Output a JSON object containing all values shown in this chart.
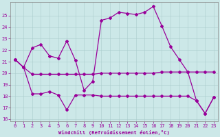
{
  "xlabel": "Windchill (Refroidissement éolien,°C)",
  "xlim": [
    -0.5,
    23.5
  ],
  "ylim": [
    15.8,
    26.2
  ],
  "yticks": [
    16,
    17,
    18,
    19,
    20,
    21,
    22,
    23,
    24,
    25
  ],
  "xticks": [
    0,
    1,
    2,
    3,
    4,
    5,
    6,
    7,
    8,
    9,
    10,
    11,
    12,
    13,
    14,
    15,
    16,
    17,
    18,
    19,
    20,
    21,
    22,
    23
  ],
  "bg_color": "#cce8e8",
  "line_color1": "#990099",
  "line_color2": "#cc00cc",
  "line_color3": "#aa00aa",
  "line1_x": [
    0,
    1,
    2,
    3,
    4,
    5,
    6,
    7,
    8,
    9,
    10,
    11,
    12,
    13,
    14,
    15,
    16,
    17,
    18,
    19,
    20,
    21,
    22,
    23
  ],
  "line1_y": [
    21.2,
    20.5,
    19.9,
    19.9,
    19.9,
    19.9,
    19.9,
    19.9,
    19.9,
    19.9,
    20.0,
    20.0,
    20.0,
    20.0,
    20.0,
    20.0,
    20.0,
    20.1,
    20.1,
    20.1,
    20.1,
    20.1,
    20.1,
    20.1
  ],
  "line2_x": [
    0,
    1,
    2,
    3,
    4,
    5,
    6,
    7,
    8,
    9,
    10,
    11,
    12,
    13,
    14,
    15,
    16,
    17,
    18,
    19,
    20,
    21,
    22,
    23
  ],
  "line2_y": [
    21.2,
    20.5,
    22.2,
    22.5,
    21.5,
    21.3,
    22.8,
    21.1,
    18.5,
    19.3,
    24.6,
    24.8,
    25.3,
    25.2,
    25.1,
    25.3,
    25.8,
    24.1,
    22.3,
    21.2,
    20.1,
    17.6,
    16.5,
    17.9
  ],
  "line3_x": [
    0,
    1,
    2,
    3,
    4,
    5,
    6,
    7,
    8,
    9,
    10,
    11,
    12,
    13,
    14,
    15,
    16,
    17,
    18,
    19,
    20,
    21,
    22,
    23
  ],
  "line3_y": [
    21.2,
    20.5,
    18.2,
    18.2,
    18.4,
    18.1,
    16.8,
    18.1,
    18.1,
    18.1,
    18.0,
    18.0,
    18.0,
    18.0,
    18.0,
    18.0,
    18.0,
    18.0,
    18.0,
    18.0,
    18.0,
    17.6,
    16.5,
    17.9
  ]
}
